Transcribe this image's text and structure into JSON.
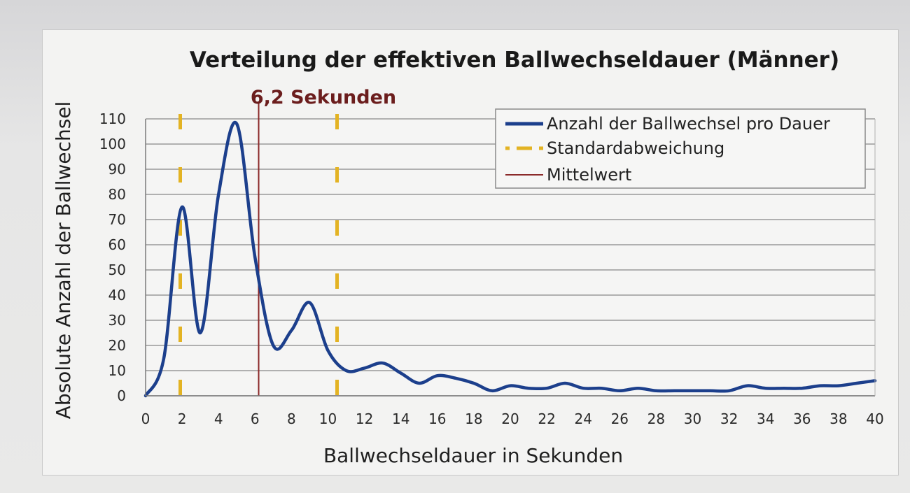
{
  "chart_data": {
    "type": "line",
    "title": "Verteilung der effektiven Ballwechseldauer (Männer)",
    "xlabel": "Ballwechseldauer in Sekunden",
    "ylabel": "Absolute Anzahl der Ballwechsel",
    "xlim": [
      0,
      40
    ],
    "ylim": [
      0,
      110
    ],
    "x_ticks": [
      "0",
      "2",
      "4",
      "6",
      "8",
      "10",
      "12",
      "14",
      "16",
      "18",
      "20",
      "22",
      "24",
      "26",
      "28",
      "30",
      "32",
      "34",
      "36",
      "38",
      "40"
    ],
    "y_ticks": [
      "0",
      "10",
      "20",
      "30",
      "40",
      "50",
      "60",
      "70",
      "80",
      "90",
      "100",
      "110"
    ],
    "grid": "horizontal",
    "legend_position": "top-right",
    "series": [
      {
        "name": "Anzahl der Ballwechsel pro Dauer",
        "color": "#1c3f8c",
        "x": [
          0,
          1,
          2,
          3,
          4,
          5,
          6,
          7,
          8,
          9,
          10,
          11,
          12,
          13,
          14,
          15,
          16,
          17,
          18,
          19,
          20,
          21,
          22,
          23,
          24,
          25,
          26,
          27,
          28,
          29,
          30,
          31,
          32,
          33,
          34,
          35,
          36,
          37,
          38,
          39,
          40
        ],
        "y": [
          0,
          15,
          75,
          25,
          80,
          108,
          55,
          20,
          26,
          37,
          18,
          10,
          11,
          13,
          9,
          5,
          8,
          7,
          5,
          2,
          4,
          3,
          3,
          5,
          3,
          3,
          2,
          3,
          2,
          2,
          2,
          2,
          2,
          4,
          3,
          3,
          3,
          4,
          4,
          5,
          6
        ]
      }
    ],
    "reference_lines": [
      {
        "name": "Standardabweichung",
        "x": 1.9,
        "color": "#e3b323",
        "style": "dashed"
      },
      {
        "name": "Standardabweichung",
        "x": 10.5,
        "color": "#e3b323",
        "style": "dashed"
      },
      {
        "name": "Mittelwert",
        "x": 6.2,
        "color": "#8b2a2a",
        "style": "solid",
        "label": "6,2 Sekunden"
      }
    ]
  }
}
